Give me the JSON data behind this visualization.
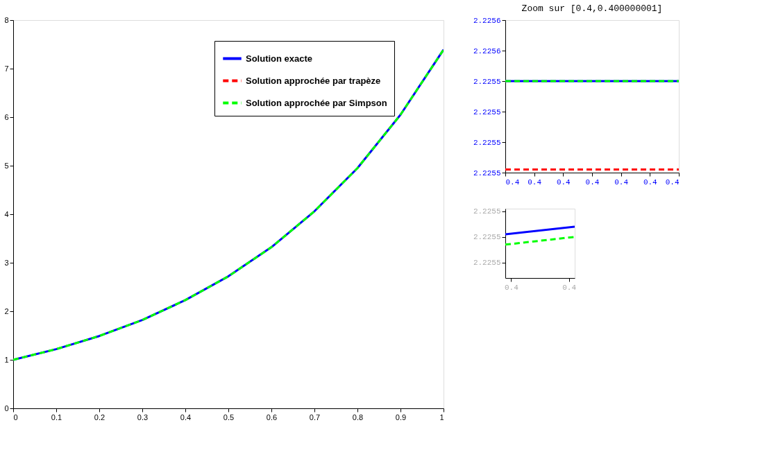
{
  "chart_data": [
    {
      "type": "line",
      "x": [
        0,
        0.1,
        0.2,
        0.3,
        0.4,
        0.5,
        0.6,
        0.7,
        0.8,
        0.9,
        1
      ],
      "xlim": [
        0,
        1
      ],
      "xticks": [
        0,
        0.1,
        0.2,
        0.3,
        0.4,
        0.5,
        0.6,
        0.7,
        0.8,
        0.9,
        1
      ],
      "ylim": [
        0,
        8
      ],
      "yticks": [
        0,
        1,
        2,
        3,
        4,
        5,
        6,
        7,
        8
      ],
      "legend": "top right",
      "series": [
        {
          "name": "Solution exacte",
          "color": "#0000ff",
          "line_style": "solid",
          "values": [
            1,
            1.22,
            1.49,
            1.82,
            2.23,
            2.72,
            3.32,
            4.06,
            4.95,
            6.05,
            7.39
          ]
        },
        {
          "name": "Solution approchée par trapèze",
          "color": "#ff0000",
          "line_style": "dashed",
          "values": [
            null,
            null,
            null,
            null,
            null,
            null,
            null,
            null,
            null,
            null,
            null
          ]
        },
        {
          "name": "Solution approchée par Simpson",
          "color": "#00ff00",
          "line_style": "dashed",
          "values": [
            1,
            1.22,
            1.49,
            1.82,
            2.23,
            2.72,
            3.32,
            4.06,
            4.95,
            6.05,
            7.39
          ]
        }
      ]
    },
    {
      "type": "line",
      "title": "Zoom sur [0.4,0.400000001]",
      "x": [
        0.4,
        0.400000001
      ],
      "xlim": [
        0.4,
        0.400000001
      ],
      "xticks": [
        {
          "value": 0.4,
          "label": "0.4"
        },
        {
          "value": 0.4000000001666,
          "label": "0.4"
        },
        {
          "value": 0.4000000003333,
          "label": "0.4"
        },
        {
          "value": 0.4000000005,
          "label": "0.4"
        },
        {
          "value": 0.4000000006666,
          "label": "0.4"
        },
        {
          "value": 0.4000000008333,
          "label": "0.4"
        },
        {
          "value": 0.400000001,
          "label": "0.4"
        }
      ],
      "ylim": [
        2.22552,
        2.22557
      ],
      "yticks": [
        {
          "value": 2.22552,
          "label": "2.2255"
        },
        {
          "value": 2.22553,
          "label": "2.2255"
        },
        {
          "value": 2.22554,
          "label": "2.2255"
        },
        {
          "value": 2.22555,
          "label": "2.2255"
        },
        {
          "value": 2.22556,
          "label": "2.2256"
        },
        {
          "value": 2.22557,
          "label": "2.2256"
        }
      ],
      "series": [
        {
          "color": "#0000ff",
          "line_style": "solid",
          "values": [
            2.22555,
            2.22555
          ]
        },
        {
          "color": "#ff0000",
          "line_style": "dashed",
          "values": [
            2.225521,
            2.225521
          ]
        },
        {
          "color": "#00ff00",
          "line_style": "dashed",
          "values": [
            2.22555,
            2.22555
          ]
        }
      ]
    },
    {
      "type": "line",
      "x": [
        0.4,
        0.40000000012
      ],
      "xlim": [
        0.4,
        0.40000000012
      ],
      "xticks": [
        {
          "value": 0.40000000001,
          "label": "0.4"
        },
        {
          "value": 0.40000000011,
          "label": "0.4"
        }
      ],
      "ylim": [
        2.2255394,
        2.2255421
      ],
      "yticks": [
        {
          "value": 2.22554,
          "label": "2.2255"
        },
        {
          "value": 2.225541,
          "label": "2.2255"
        },
        {
          "value": 2.225542,
          "label": "2.2255"
        }
      ],
      "series": [
        {
          "color": "#0000ff",
          "line_style": "solid",
          "values": [
            2.2255411,
            2.2255414
          ]
        },
        {
          "color": "#ff0000",
          "line_style": "dashed",
          "values": [
            null,
            null
          ]
        },
        {
          "color": "#00ff00",
          "line_style": "dashed",
          "values": [
            2.2255407,
            2.225541
          ]
        }
      ]
    }
  ]
}
